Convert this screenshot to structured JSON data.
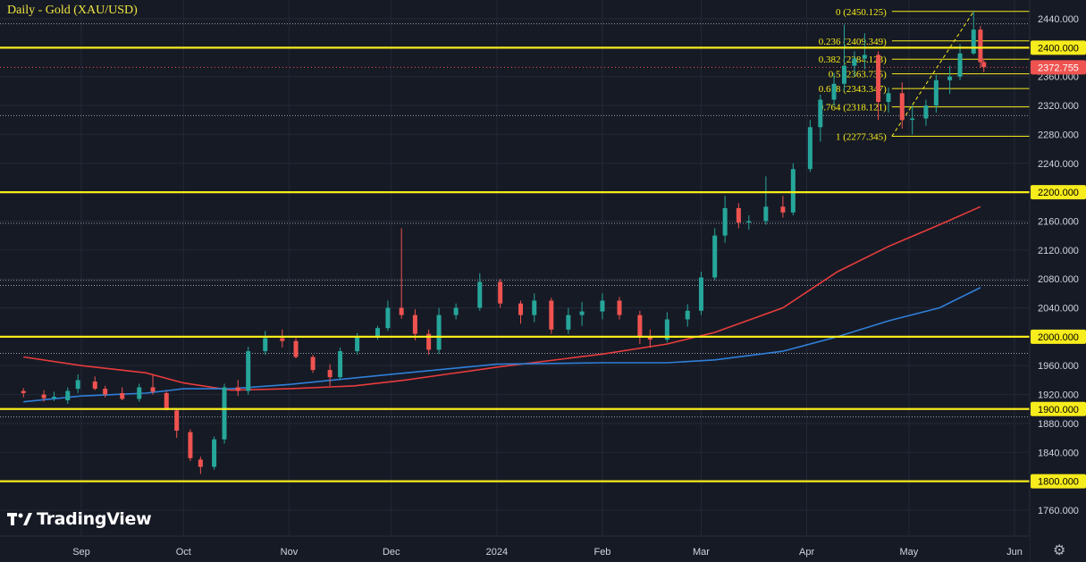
{
  "header": {
    "title": "Daily - Gold (XAU/USD)"
  },
  "logo": {
    "text": "TradingView"
  },
  "settings": {
    "icon": "gear-icon"
  },
  "colors": {
    "background": "#161a25",
    "up": "#26a69a",
    "down": "#ef5350",
    "level": "#f7ec1c",
    "fib": "#f7ec1c",
    "ma_red": "#e83c3c",
    "ma_blue": "#2f7fd8",
    "price_tag": "#ef5350",
    "axis_text": "#d1d4dc"
  },
  "chart_data": {
    "type": "candlestick",
    "title": "Daily - Gold (XAU/USD)",
    "ylim": [
      1740,
      2460
    ],
    "y_ticks": [
      "2440.000",
      "2400.000",
      "2360.000",
      "2320.000",
      "2280.000",
      "2240.000",
      "2200.000",
      "2160.000",
      "2120.000",
      "2080.000",
      "2040.000",
      "2000.000",
      "1960.000",
      "1920.000",
      "1900.000",
      "1880.000",
      "1840.000",
      "1800.000",
      "1760.000"
    ],
    "x_ticks": [
      {
        "label": "Sep",
        "date": "2023-09-01"
      },
      {
        "label": "Oct",
        "date": "2023-10-01"
      },
      {
        "label": "Nov",
        "date": "2023-11-01"
      },
      {
        "label": "Dec",
        "date": "2023-12-01"
      },
      {
        "label": "2024",
        "date": "2024-01-01"
      },
      {
        "label": "Feb",
        "date": "2024-02-01"
      },
      {
        "label": "Mar",
        "date": "2024-03-01"
      },
      {
        "label": "Apr",
        "date": "2024-04-01"
      },
      {
        "label": "May",
        "date": "2024-05-01"
      },
      {
        "label": "Jun",
        "date": "2024-06-01"
      }
    ],
    "last_price": {
      "label": "2372.755",
      "value": 2372.755
    },
    "horizontal_levels": [
      {
        "label": "2400.000",
        "value": 2400
      },
      {
        "label": "2200.000",
        "value": 2200
      },
      {
        "label": "2000.000",
        "value": 2000
      },
      {
        "label": "1900.000",
        "value": 1900
      },
      {
        "label": "1800.000",
        "value": 1800
      }
    ],
    "dotted_levels": [
      2433,
      2306,
      2157,
      2078,
      2071,
      1977,
      1889
    ],
    "fibonacci": [
      {
        "label": "0 (2450.125)",
        "value": 2450.125
      },
      {
        "label": "0.236 (2409.349)",
        "value": 2409.349
      },
      {
        "label": "0.382 (2384.123)",
        "value": 2384.123
      },
      {
        "label": "0.5 (2363.735)",
        "value": 2363.735
      },
      {
        "label": "0.618 (2343.347)",
        "value": 2343.347
      },
      {
        "label": "0.764 (2318.121)",
        "value": 2318.121
      },
      {
        "label": "1 (2277.345)",
        "value": 2277.345
      }
    ],
    "series": [
      {
        "name": "",
        "type": "line",
        "color": "#e83c3c",
        "points": [
          [
            "2023-08-15",
            1972
          ],
          [
            "2023-09-01",
            1960
          ],
          [
            "2023-09-20",
            1950
          ],
          [
            "2023-10-01",
            1936
          ],
          [
            "2023-10-15",
            1926
          ],
          [
            "2023-11-01",
            1928
          ],
          [
            "2023-11-20",
            1932
          ],
          [
            "2023-12-05",
            1940
          ],
          [
            "2024-01-01",
            1958
          ],
          [
            "2024-02-01",
            1976
          ],
          [
            "2024-02-20",
            1990
          ],
          [
            "2024-03-05",
            2006
          ],
          [
            "2024-03-25",
            2040
          ],
          [
            "2024-04-10",
            2090
          ],
          [
            "2024-04-25",
            2125
          ],
          [
            "2024-05-10",
            2155
          ],
          [
            "2024-05-22",
            2180
          ]
        ]
      },
      {
        "name": "",
        "type": "line",
        "color": "#2f7fd8",
        "points": [
          [
            "2023-08-15",
            1910
          ],
          [
            "2023-09-01",
            1918
          ],
          [
            "2023-09-20",
            1922
          ],
          [
            "2023-10-01",
            1928
          ],
          [
            "2023-10-15",
            1928
          ],
          [
            "2023-11-01",
            1934
          ],
          [
            "2023-12-01",
            1948
          ],
          [
            "2024-01-01",
            1962
          ],
          [
            "2024-02-01",
            1964
          ],
          [
            "2024-02-20",
            1964
          ],
          [
            "2024-03-05",
            1968
          ],
          [
            "2024-03-25",
            1980
          ],
          [
            "2024-04-10",
            2000
          ],
          [
            "2024-04-25",
            2022
          ],
          [
            "2024-05-10",
            2040
          ],
          [
            "2024-05-22",
            2068
          ]
        ]
      }
    ],
    "candles": [
      {
        "d": "2023-08-15",
        "o": 1925,
        "h": 1929,
        "l": 1916,
        "c": 1922
      },
      {
        "d": "2023-08-21",
        "o": 1920,
        "h": 1926,
        "l": 1910,
        "c": 1915
      },
      {
        "d": "2023-08-24",
        "o": 1915,
        "h": 1924,
        "l": 1911,
        "c": 1917
      },
      {
        "d": "2023-08-28",
        "o": 1912,
        "h": 1930,
        "l": 1907,
        "c": 1925
      },
      {
        "d": "2023-08-31",
        "o": 1928,
        "h": 1948,
        "l": 1922,
        "c": 1940
      },
      {
        "d": "2023-09-05",
        "o": 1938,
        "h": 1945,
        "l": 1926,
        "c": 1928
      },
      {
        "d": "2023-09-08",
        "o": 1928,
        "h": 1932,
        "l": 1916,
        "c": 1920
      },
      {
        "d": "2023-09-13",
        "o": 1922,
        "h": 1930,
        "l": 1912,
        "c": 1914
      },
      {
        "d": "2023-09-18",
        "o": 1914,
        "h": 1935,
        "l": 1910,
        "c": 1930
      },
      {
        "d": "2023-09-22",
        "o": 1930,
        "h": 1947,
        "l": 1920,
        "c": 1924
      },
      {
        "d": "2023-09-26",
        "o": 1922,
        "h": 1925,
        "l": 1898,
        "c": 1900
      },
      {
        "d": "2023-09-29",
        "o": 1898,
        "h": 1900,
        "l": 1860,
        "c": 1870
      },
      {
        "d": "2023-10-03",
        "o": 1868,
        "h": 1872,
        "l": 1828,
        "c": 1832
      },
      {
        "d": "2023-10-06",
        "o": 1830,
        "h": 1834,
        "l": 1810,
        "c": 1820
      },
      {
        "d": "2023-10-10",
        "o": 1820,
        "h": 1862,
        "l": 1816,
        "c": 1858
      },
      {
        "d": "2023-10-13",
        "o": 1858,
        "h": 1935,
        "l": 1852,
        "c": 1930
      },
      {
        "d": "2023-10-17",
        "o": 1930,
        "h": 1940,
        "l": 1918,
        "c": 1925
      },
      {
        "d": "2023-10-20",
        "o": 1925,
        "h": 1986,
        "l": 1920,
        "c": 1980
      },
      {
        "d": "2023-10-25",
        "o": 1980,
        "h": 2008,
        "l": 1975,
        "c": 1998
      },
      {
        "d": "2023-10-30",
        "o": 1998,
        "h": 2010,
        "l": 1985,
        "c": 1994
      },
      {
        "d": "2023-11-03",
        "o": 1994,
        "h": 1998,
        "l": 1970,
        "c": 1972
      },
      {
        "d": "2023-11-08",
        "o": 1972,
        "h": 1975,
        "l": 1950,
        "c": 1954
      },
      {
        "d": "2023-11-13",
        "o": 1954,
        "h": 1962,
        "l": 1932,
        "c": 1944
      },
      {
        "d": "2023-11-16",
        "o": 1944,
        "h": 1985,
        "l": 1940,
        "c": 1980
      },
      {
        "d": "2023-11-21",
        "o": 1980,
        "h": 2005,
        "l": 1975,
        "c": 2000
      },
      {
        "d": "2023-11-27",
        "o": 2000,
        "h": 2015,
        "l": 1996,
        "c": 2012
      },
      {
        "d": "2023-11-30",
        "o": 2012,
        "h": 2050,
        "l": 2008,
        "c": 2040
      },
      {
        "d": "2023-12-04",
        "o": 2040,
        "h": 2150,
        "l": 2025,
        "c": 2030
      },
      {
        "d": "2023-12-08",
        "o": 2030,
        "h": 2038,
        "l": 1995,
        "c": 2004
      },
      {
        "d": "2023-12-12",
        "o": 2004,
        "h": 2010,
        "l": 1975,
        "c": 1982
      },
      {
        "d": "2023-12-15",
        "o": 1982,
        "h": 2040,
        "l": 1976,
        "c": 2030
      },
      {
        "d": "2023-12-20",
        "o": 2030,
        "h": 2046,
        "l": 2024,
        "c": 2040
      },
      {
        "d": "2023-12-27",
        "o": 2040,
        "h": 2088,
        "l": 2036,
        "c": 2076
      },
      {
        "d": "2024-01-02",
        "o": 2076,
        "h": 2080,
        "l": 2040,
        "c": 2046
      },
      {
        "d": "2024-01-08",
        "o": 2046,
        "h": 2050,
        "l": 2018,
        "c": 2030
      },
      {
        "d": "2024-01-12",
        "o": 2030,
        "h": 2060,
        "l": 2020,
        "c": 2050
      },
      {
        "d": "2024-01-17",
        "o": 2050,
        "h": 2054,
        "l": 2004,
        "c": 2010
      },
      {
        "d": "2024-01-22",
        "o": 2010,
        "h": 2040,
        "l": 2004,
        "c": 2030
      },
      {
        "d": "2024-01-26",
        "o": 2030,
        "h": 2048,
        "l": 2015,
        "c": 2035
      },
      {
        "d": "2024-02-01",
        "o": 2035,
        "h": 2060,
        "l": 2024,
        "c": 2050
      },
      {
        "d": "2024-02-06",
        "o": 2050,
        "h": 2055,
        "l": 2024,
        "c": 2030
      },
      {
        "d": "2024-02-12",
        "o": 2030,
        "h": 2036,
        "l": 1990,
        "c": 2000
      },
      {
        "d": "2024-02-15",
        "o": 2000,
        "h": 2010,
        "l": 1985,
        "c": 1996
      },
      {
        "d": "2024-02-20",
        "o": 1996,
        "h": 2034,
        "l": 1992,
        "c": 2024
      },
      {
        "d": "2024-02-26",
        "o": 2024,
        "h": 2045,
        "l": 2014,
        "c": 2036
      },
      {
        "d": "2024-03-01",
        "o": 2036,
        "h": 2090,
        "l": 2030,
        "c": 2082
      },
      {
        "d": "2024-03-05",
        "o": 2082,
        "h": 2150,
        "l": 2078,
        "c": 2140
      },
      {
        "d": "2024-03-08",
        "o": 2140,
        "h": 2195,
        "l": 2130,
        "c": 2178
      },
      {
        "d": "2024-03-12",
        "o": 2178,
        "h": 2185,
        "l": 2150,
        "c": 2158
      },
      {
        "d": "2024-03-15",
        "o": 2158,
        "h": 2168,
        "l": 2148,
        "c": 2160
      },
      {
        "d": "2024-03-20",
        "o": 2160,
        "h": 2222,
        "l": 2155,
        "c": 2180
      },
      {
        "d": "2024-03-25",
        "o": 2180,
        "h": 2195,
        "l": 2165,
        "c": 2172
      },
      {
        "d": "2024-03-28",
        "o": 2172,
        "h": 2240,
        "l": 2168,
        "c": 2232
      },
      {
        "d": "2024-04-02",
        "o": 2232,
        "h": 2300,
        "l": 2228,
        "c": 2290
      },
      {
        "d": "2024-04-05",
        "o": 2290,
        "h": 2335,
        "l": 2270,
        "c": 2328
      },
      {
        "d": "2024-04-09",
        "o": 2328,
        "h": 2365,
        "l": 2320,
        "c": 2350
      },
      {
        "d": "2024-04-12",
        "o": 2350,
        "h": 2432,
        "l": 2340,
        "c": 2375
      },
      {
        "d": "2024-04-15",
        "o": 2375,
        "h": 2395,
        "l": 2360,
        "c": 2385
      },
      {
        "d": "2024-04-18",
        "o": 2385,
        "h": 2420,
        "l": 2370,
        "c": 2390
      },
      {
        "d": "2024-04-22",
        "o": 2390,
        "h": 2395,
        "l": 2300,
        "c": 2325
      },
      {
        "d": "2024-04-25",
        "o": 2325,
        "h": 2345,
        "l": 2310,
        "c": 2337
      },
      {
        "d": "2024-04-29",
        "o": 2337,
        "h": 2352,
        "l": 2288,
        "c": 2300
      },
      {
        "d": "2024-05-02",
        "o": 2300,
        "h": 2320,
        "l": 2280,
        "c": 2302
      },
      {
        "d": "2024-05-06",
        "o": 2302,
        "h": 2328,
        "l": 2292,
        "c": 2320
      },
      {
        "d": "2024-05-09",
        "o": 2320,
        "h": 2362,
        "l": 2310,
        "c": 2355
      },
      {
        "d": "2024-05-13",
        "o": 2355,
        "h": 2375,
        "l": 2336,
        "c": 2360
      },
      {
        "d": "2024-05-16",
        "o": 2360,
        "h": 2405,
        "l": 2355,
        "c": 2392
      },
      {
        "d": "2024-05-20",
        "o": 2392,
        "h": 2450,
        "l": 2390,
        "c": 2425
      },
      {
        "d": "2024-05-22",
        "o": 2425,
        "h": 2430,
        "l": 2372,
        "c": 2380
      },
      {
        "d": "2024-05-23",
        "o": 2380,
        "h": 2385,
        "l": 2366,
        "c": 2373
      }
    ]
  }
}
